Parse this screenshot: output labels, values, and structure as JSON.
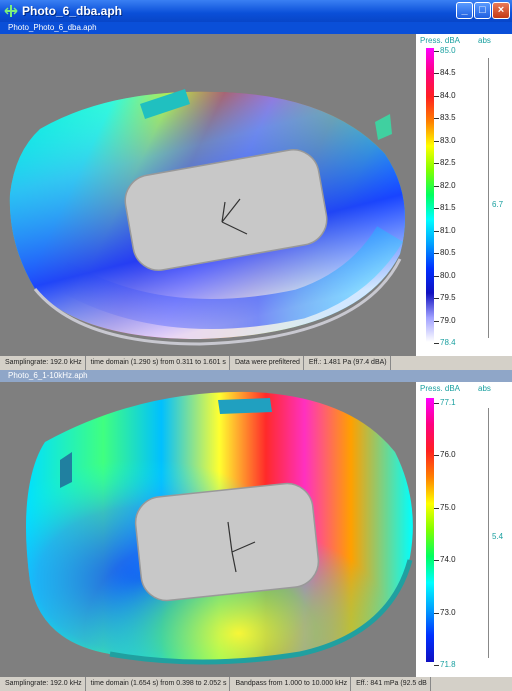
{
  "window": {
    "title": "Photo_6_dba.aph",
    "icon": "arrows-icon"
  },
  "panel_top": {
    "subtitle": "Photo_Photo_6_dba.aph",
    "legend": {
      "header_left": "Press. dBA",
      "header_right": "abs",
      "ticks": [
        "85.0",
        "84.5",
        "84.0",
        "83.5",
        "83.0",
        "82.5",
        "82.0",
        "81.5",
        "81.0",
        "80.5",
        "80.0",
        "79.5",
        "79.0",
        "78.4"
      ],
      "mid_value": "6.7"
    },
    "status": [
      "Samplingrate: 192.0 kHz",
      "time domain (1.290 s) from 0.311 to 1.601 s",
      "Data were prefiltered",
      "Eff.: 1.481 Pa (97.4 dBA)"
    ]
  },
  "panel_bottom": {
    "subtitle": "Photo_6_1-10kHz.aph",
    "legend": {
      "header_left": "Press. dBA",
      "header_right": "abs",
      "ticks": [
        "77.1",
        "76.0",
        "75.0",
        "74.0",
        "73.0",
        "71.8"
      ],
      "mid_value": "5.4"
    },
    "status": [
      "Samplingrate: 192.0 kHz",
      "time domain (1.654 s) from 0.398 to 2.052 s",
      "Bandpass from 1.000 to 10.000 kHz",
      "Eff.: 841 mPa (92.5 dB"
    ]
  }
}
